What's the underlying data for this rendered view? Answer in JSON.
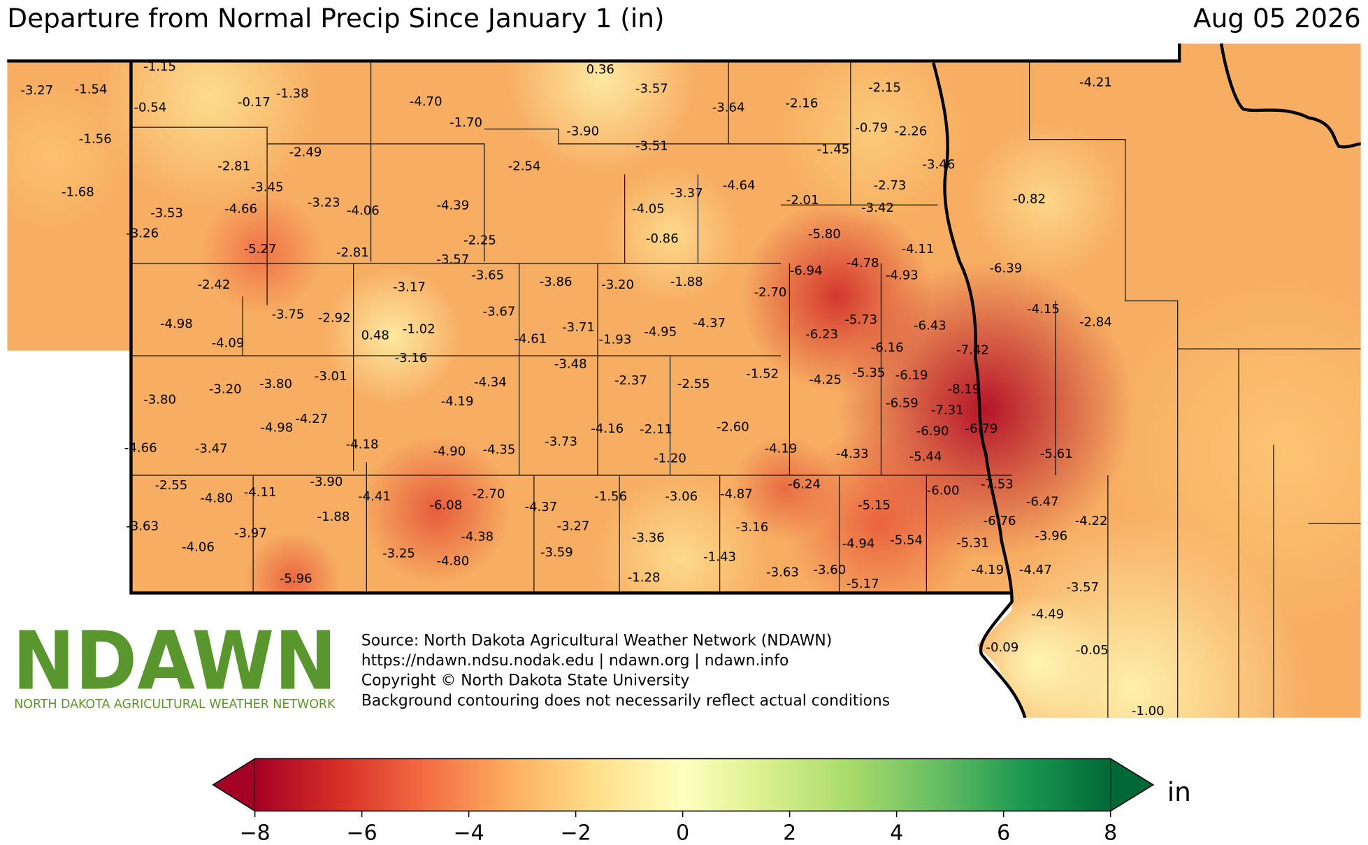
{
  "header": {
    "title": "Departure from Normal Precip Since January 1 (in)",
    "date": "Aug 05 2026"
  },
  "stations": {
    "values": [
      -3.27,
      -1.54,
      -1.15,
      -0.54,
      -0.17,
      -1.38,
      -1.56,
      -1.68,
      -2.81,
      -2.49,
      -3.45,
      -3.53,
      -4.66,
      -3.23,
      -4.06,
      -3.26,
      -5.27,
      -2.81,
      -4.7,
      -1.7,
      0.36,
      -3.57,
      -3.9,
      -3.51,
      -2.54,
      -4.39,
      -2.25,
      -3.57,
      -3.65,
      -3.64,
      -2.16,
      -2.15,
      -0.79,
      -2.26,
      -1.45,
      -3.46,
      -4.21,
      -3.37,
      -4.64,
      -4.05,
      -0.86,
      -2.01,
      -2.73,
      -3.42,
      -0.82,
      -5.8,
      -4.11,
      -4.78,
      -6.94,
      -4.93,
      -6.39,
      -2.42,
      -3.17,
      -3.86,
      -3.2,
      -1.88,
      -2.7,
      -4.98,
      -3.75,
      -2.92,
      0.48,
      -1.02,
      -3.67,
      -4.61,
      -3.71,
      -1.93,
      -4.95,
      -4.37,
      -5.73,
      -6.23,
      -6.43,
      -4.15,
      -2.84,
      -4.09,
      -3.16,
      -3.48,
      -7.42,
      -6.16,
      -3.8,
      -3.2,
      -3.8,
      -3.01,
      -4.34,
      -2.37,
      -2.55,
      -1.52,
      -4.25,
      -5.35,
      -6.19,
      -8.19,
      -4.19,
      -6.59,
      -7.31,
      -6.9,
      -6.79,
      -4.98,
      -4.27,
      -4.66,
      -3.47,
      -4.18,
      -4.9,
      -4.35,
      -3.73,
      -4.16,
      -2.11,
      -2.6,
      -4.19,
      -4.33,
      -5.44,
      -5.61,
      -1.2,
      -2.55,
      -4.8,
      -4.11,
      -3.9,
      -4.41,
      -6.08,
      -2.7,
      -4.37,
      -1.56,
      -3.06,
      -4.87,
      -6.24,
      -6.0,
      -7.53,
      -5.15,
      -6.47,
      -1.88,
      -3.63,
      -3.97,
      -4.06,
      -4.38,
      -3.27,
      -3.36,
      -3.16,
      -6.76,
      -3.96,
      -4.22,
      -4.94,
      -5.54,
      -5.31,
      -3.25,
      -4.8,
      -3.59,
      -1.43,
      -3.63,
      -3.6,
      -5.17,
      -4.19,
      -4.47,
      -3.57,
      -1.28,
      -5.96,
      -4.49,
      -0.09,
      -0.05,
      -1.0
    ],
    "value_labels": [
      "-3.27",
      "-1.54",
      "-1.15",
      "-0.54",
      "-0.17",
      "-1.38",
      "-1.56",
      "-1.68",
      "-2.81",
      "-2.49",
      "-3.45",
      "-3.53",
      "-4.66",
      "-3.23",
      "-4.06",
      "-3.26",
      "-5.27",
      "-2.81",
      "-4.70",
      "-1.70",
      "0.36",
      "-3.57",
      "-3.90",
      "-3.51",
      "-2.54",
      "-4.39",
      "-2.25",
      "-3.57",
      "-3.65",
      "-3.64",
      "-2.16",
      "-2.15",
      "-0.79",
      "-2.26",
      "-1.45",
      "-3.46",
      "-4.21",
      "-3.37",
      "-4.64",
      "-4.05",
      "-0.86",
      "-2.01",
      "-2.73",
      "-3.42",
      "-0.82",
      "-5.80",
      "-4.11",
      "-4.78",
      "-6.94",
      "-4.93",
      "-6.39",
      "-2.42",
      "-3.17",
      "-3.86",
      "-3.20",
      "-1.88",
      "-2.70",
      "-4.98",
      "-3.75",
      "-2.92",
      "0.48",
      "-1.02",
      "-3.67",
      "-4.61",
      "-3.71",
      "-1.93",
      "-4.95",
      "-4.37",
      "-5.73",
      "-6.23",
      "-6.43",
      "-4.15",
      "-2.84",
      "-4.09",
      "-3.16",
      "-3.48",
      "-7.42",
      "-6.16",
      "-3.80",
      "-3.20",
      "-3.80",
      "-3.01",
      "-4.34",
      "-2.37",
      "-2.55",
      "-1.52",
      "-4.25",
      "-5.35",
      "-6.19",
      "-8.19",
      "-4.19",
      "-6.59",
      "-7.31",
      "-6.90",
      "-6.79",
      "-4.98",
      "-4.27",
      "-4.66",
      "-3.47",
      "-4.18",
      "-4.90",
      "-4.35",
      "-3.73",
      "-4.16",
      "-2.11",
      "-2.60",
      "-4.19",
      "-4.33",
      "-5.44",
      "-5.61",
      "-1.20",
      "-2.55",
      "-4.80",
      "-4.11",
      "-3.90",
      "-4.41",
      "-6.08",
      "-2.70",
      "-4.37",
      "-1.56",
      "-3.06",
      "-4.87",
      "-6.24",
      "-6.00",
      "-7.53",
      "-5.15",
      "-6.47",
      "-1.88",
      "-3.63",
      "-3.97",
      "-4.06",
      "-4.38",
      "-3.27",
      "-3.36",
      "-3.16",
      "-6.76",
      "-3.96",
      "-4.22",
      "-4.94",
      "-5.54",
      "-5.31",
      "-3.25",
      "-4.80",
      "-3.59",
      "-1.43",
      "-3.63",
      "-3.60",
      "-5.17",
      "-4.19",
      "-4.47",
      "-3.57",
      "-1.28",
      "-5.96",
      "-4.49",
      "-0.09",
      "-0.05",
      "-1.00"
    ]
  },
  "logo": {
    "name": "NDAWN",
    "subtitle": "NORTH DAKOTA AGRICULTURAL WEATHER NETWORK",
    "color": "#5a962e"
  },
  "source_lines": [
    "Source: North Dakota Agricultural Weather Network (NDAWN)",
    "https://ndawn.ndsu.nodak.edu | ndawn.org | ndawn.info",
    "Copyright © North Dakota State University",
    "Background contouring does not necessarily reflect actual conditions"
  ],
  "colorbar": {
    "lim": [
      -8,
      8
    ],
    "unit": "in",
    "ticks": [
      {
        "value": -8,
        "label": "−8"
      },
      {
        "value": -6,
        "label": "−6"
      },
      {
        "value": -4,
        "label": "−4"
      },
      {
        "value": -2,
        "label": "−2"
      },
      0,
      2,
      4,
      6,
      8
    ],
    "colors": [
      "#a50026",
      "#d73027",
      "#f46d43",
      "#fdae61",
      "#fee08b",
      "#ffffbf",
      "#d9ef8b",
      "#a6d96a",
      "#66bd63",
      "#1a9850",
      "#006837"
    ]
  }
}
